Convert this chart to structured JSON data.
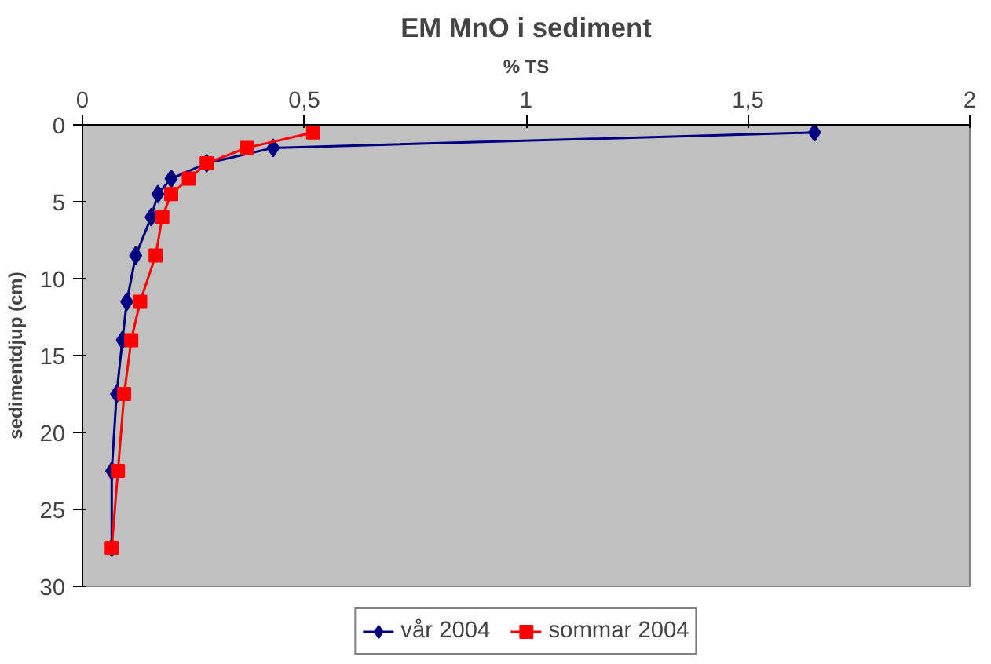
{
  "chart_data": {
    "type": "line",
    "title": "EM MnO i sediment",
    "xlabel": "% TS",
    "ylabel": "sedimentdjup (cm)",
    "xlim": [
      0,
      2
    ],
    "xticks": [
      0,
      {
        "value": 0.5,
        "label": "0,5"
      },
      1,
      {
        "value": 1.5,
        "label": "1,5"
      },
      2
    ],
    "ylim": [
      30,
      0
    ],
    "yticks": [
      0,
      5,
      10,
      15,
      20,
      25,
      30
    ],
    "grid": false,
    "legend": "bottom",
    "line_style": "solid",
    "series": [
      {
        "name": "vår 2004",
        "color": "#000080",
        "marker": "diamond",
        "x": [
          1.65,
          0.43,
          0.28,
          0.2,
          0.17,
          0.155,
          0.12,
          0.1,
          0.09,
          0.077,
          0.066,
          0.066
        ],
        "values": [
          0.5,
          1.5,
          2.5,
          3.5,
          4.5,
          6,
          8.5,
          11.5,
          14,
          17.5,
          22.5,
          27.5
        ]
      },
      {
        "name": "sommar 2004",
        "color": "#ff0000",
        "marker": "square",
        "x": [
          0.52,
          0.37,
          0.28,
          0.24,
          0.2,
          0.18,
          0.165,
          0.13,
          0.11,
          0.094,
          0.08,
          0.066
        ],
        "values": [
          0.5,
          1.5,
          2.5,
          3.5,
          4.5,
          6,
          8.5,
          11.5,
          14,
          17.5,
          22.5,
          27.5
        ]
      }
    ]
  }
}
